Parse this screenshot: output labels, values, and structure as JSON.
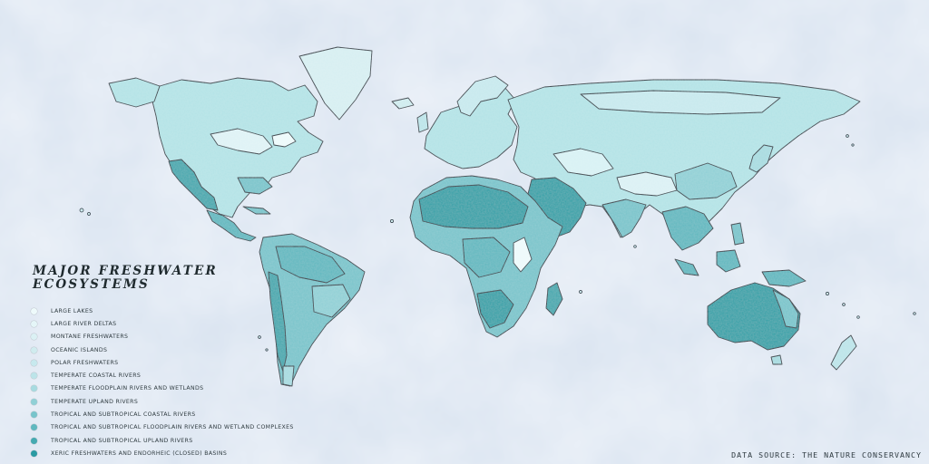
{
  "legend": {
    "title_line1": "Major Freshwater",
    "title_line2": "Ecosystems",
    "items": [
      {
        "label": "Large Lakes",
        "color": "#eefafb"
      },
      {
        "label": "Large River Deltas",
        "color": "#e5f6f8"
      },
      {
        "label": "Montane Freshwaters",
        "color": "#dbf1f4"
      },
      {
        "label": "Oceanic Islands",
        "color": "#d0ecef"
      },
      {
        "label": "Polar Freshwaters",
        "color": "#c7e9ee"
      },
      {
        "label": "Temperate Coastal Rivers",
        "color": "#bce4e9"
      },
      {
        "label": "Temperate Floodplain Rivers and Wetlands",
        "color": "#a7dbe0"
      },
      {
        "label": "Temperate Upland Rivers",
        "color": "#90d0d6"
      },
      {
        "label": "Tropical and Subtropical Coastal Rivers",
        "color": "#78c4cb"
      },
      {
        "label": "Tropical and Subtropical Floodplain Rivers and Wetland Complexes",
        "color": "#5fb8bf"
      },
      {
        "label": "Tropical and Subtropical Upland Rivers",
        "color": "#44aab1"
      },
      {
        "label": "Xeric Freshwaters and Endorheic (Closed) Basins",
        "color": "#2a9ba3"
      }
    ]
  },
  "source": "Data Source: The Nature Conservancy",
  "colors": {
    "ocean": "#d9e3f0",
    "land_default": "#b3e3e6",
    "land_dark": "#2fa0a7",
    "outside_data": "#b8bfcc",
    "coastline": "#2b3740"
  }
}
